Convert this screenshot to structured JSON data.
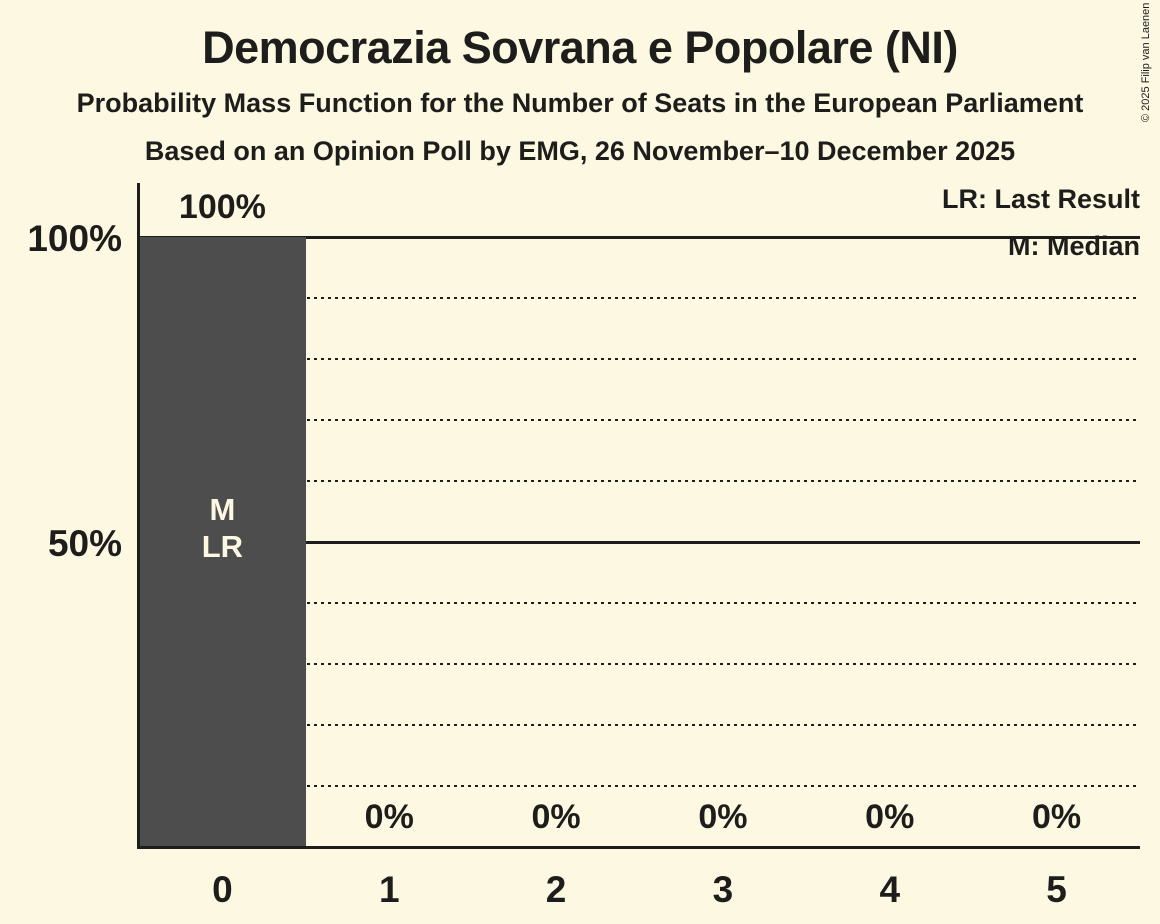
{
  "title": "Democrazia Sovrana e Popolare (NI)",
  "subtitle": "Probability Mass Function for the Number of Seats in the European Parliament",
  "source_line": "Based on an Opinion Poll by EMG, 26 November–10 December 2025",
  "copyright": "© 2025 Filip van Laenen",
  "legend": {
    "last_result": "LR: Last Result",
    "median": "M: Median"
  },
  "colors": {
    "background": "#FDF8E1",
    "bar": "#4D4D4D",
    "text": "#1D1D1B",
    "bar_label_text": "#FDF8E1"
  },
  "chart_data": {
    "type": "bar",
    "title": "Democrazia Sovrana e Popolare (NI)",
    "categories": [
      "0",
      "1",
      "2",
      "3",
      "4",
      "5"
    ],
    "values": [
      100,
      0,
      0,
      0,
      0,
      0
    ],
    "value_labels": [
      "100%",
      "0%",
      "0%",
      "0%",
      "0%",
      "0%"
    ],
    "xlabel": "",
    "ylabel": "",
    "ylim": [
      0,
      100
    ],
    "yticks": [
      {
        "value": 100,
        "label": "100%"
      },
      {
        "value": 50,
        "label": "50%"
      }
    ],
    "gridlines": {
      "solid": [
        50,
        100
      ],
      "dotted": [
        10,
        20,
        30,
        40,
        60,
        70,
        80,
        90
      ]
    },
    "grid": "horizontal",
    "legend_position": "top-right",
    "annotations": {
      "median_category": "0",
      "last_result_category": "0",
      "bar_label_lines": [
        "M",
        "LR"
      ]
    }
  }
}
